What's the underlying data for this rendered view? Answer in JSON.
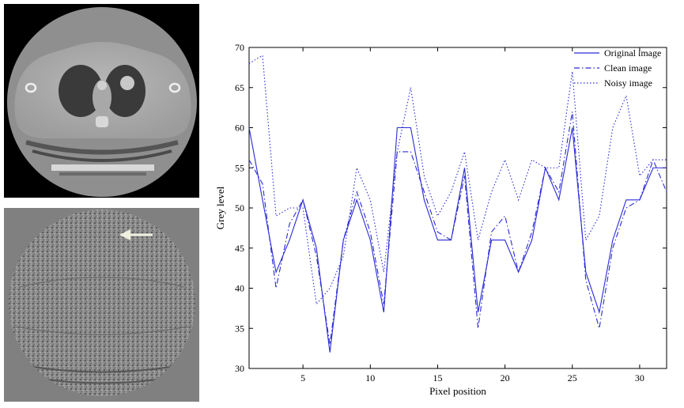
{
  "images": {
    "ct_scan": {
      "icon": "ct-chest-scan-image"
    },
    "noise_map": {
      "icon": "residual-noise-image",
      "arrow_icon": "left-arrow-icon",
      "arrow_color": "#f0f0e0"
    }
  },
  "chart_data": {
    "type": "line",
    "xlabel": "Pixel position",
    "ylabel": "Grey level",
    "xlim": [
      1,
      32
    ],
    "ylim": [
      30,
      70
    ],
    "xticks": [
      5,
      10,
      15,
      20,
      25,
      30
    ],
    "yticks": [
      30,
      35,
      40,
      45,
      50,
      55,
      60,
      65,
      70
    ],
    "grid": false,
    "legend_position": "top-right",
    "x": [
      1,
      2,
      3,
      4,
      5,
      6,
      7,
      8,
      9,
      10,
      11,
      12,
      13,
      14,
      15,
      16,
      17,
      18,
      19,
      20,
      21,
      22,
      23,
      24,
      25,
      26,
      27,
      28,
      29,
      30,
      31,
      32
    ],
    "series": [
      {
        "name": "Original image",
        "style": "solid",
        "color": "#2a2ad8",
        "values": [
          60,
          51,
          42,
          46,
          51,
          45,
          32,
          46,
          51,
          46,
          37,
          60,
          60,
          51,
          46,
          46,
          55,
          37,
          46,
          46,
          42,
          46,
          55,
          51,
          60,
          42,
          37,
          46,
          51,
          51,
          55,
          55
        ]
      },
      {
        "name": "Clean image",
        "style": "dashdot",
        "color": "#2a2ad8",
        "values": [
          56,
          53,
          40,
          48,
          51,
          44,
          33,
          46,
          52,
          47,
          38,
          57,
          57,
          52,
          47,
          46,
          54,
          35,
          47,
          49,
          42,
          47,
          55,
          52,
          62,
          41,
          35,
          45,
          50,
          51,
          56,
          52
        ]
      },
      {
        "name": "Noisy image",
        "style": "dotted",
        "color": "#2a2ad8",
        "values": [
          68,
          69,
          49,
          50,
          50,
          38,
          40,
          44,
          55,
          51,
          42,
          57,
          65,
          54,
          49,
          52,
          57,
          46,
          52,
          56,
          51,
          56,
          55,
          55,
          67,
          46,
          49,
          60,
          64,
          54,
          56,
          56
        ]
      }
    ]
  }
}
